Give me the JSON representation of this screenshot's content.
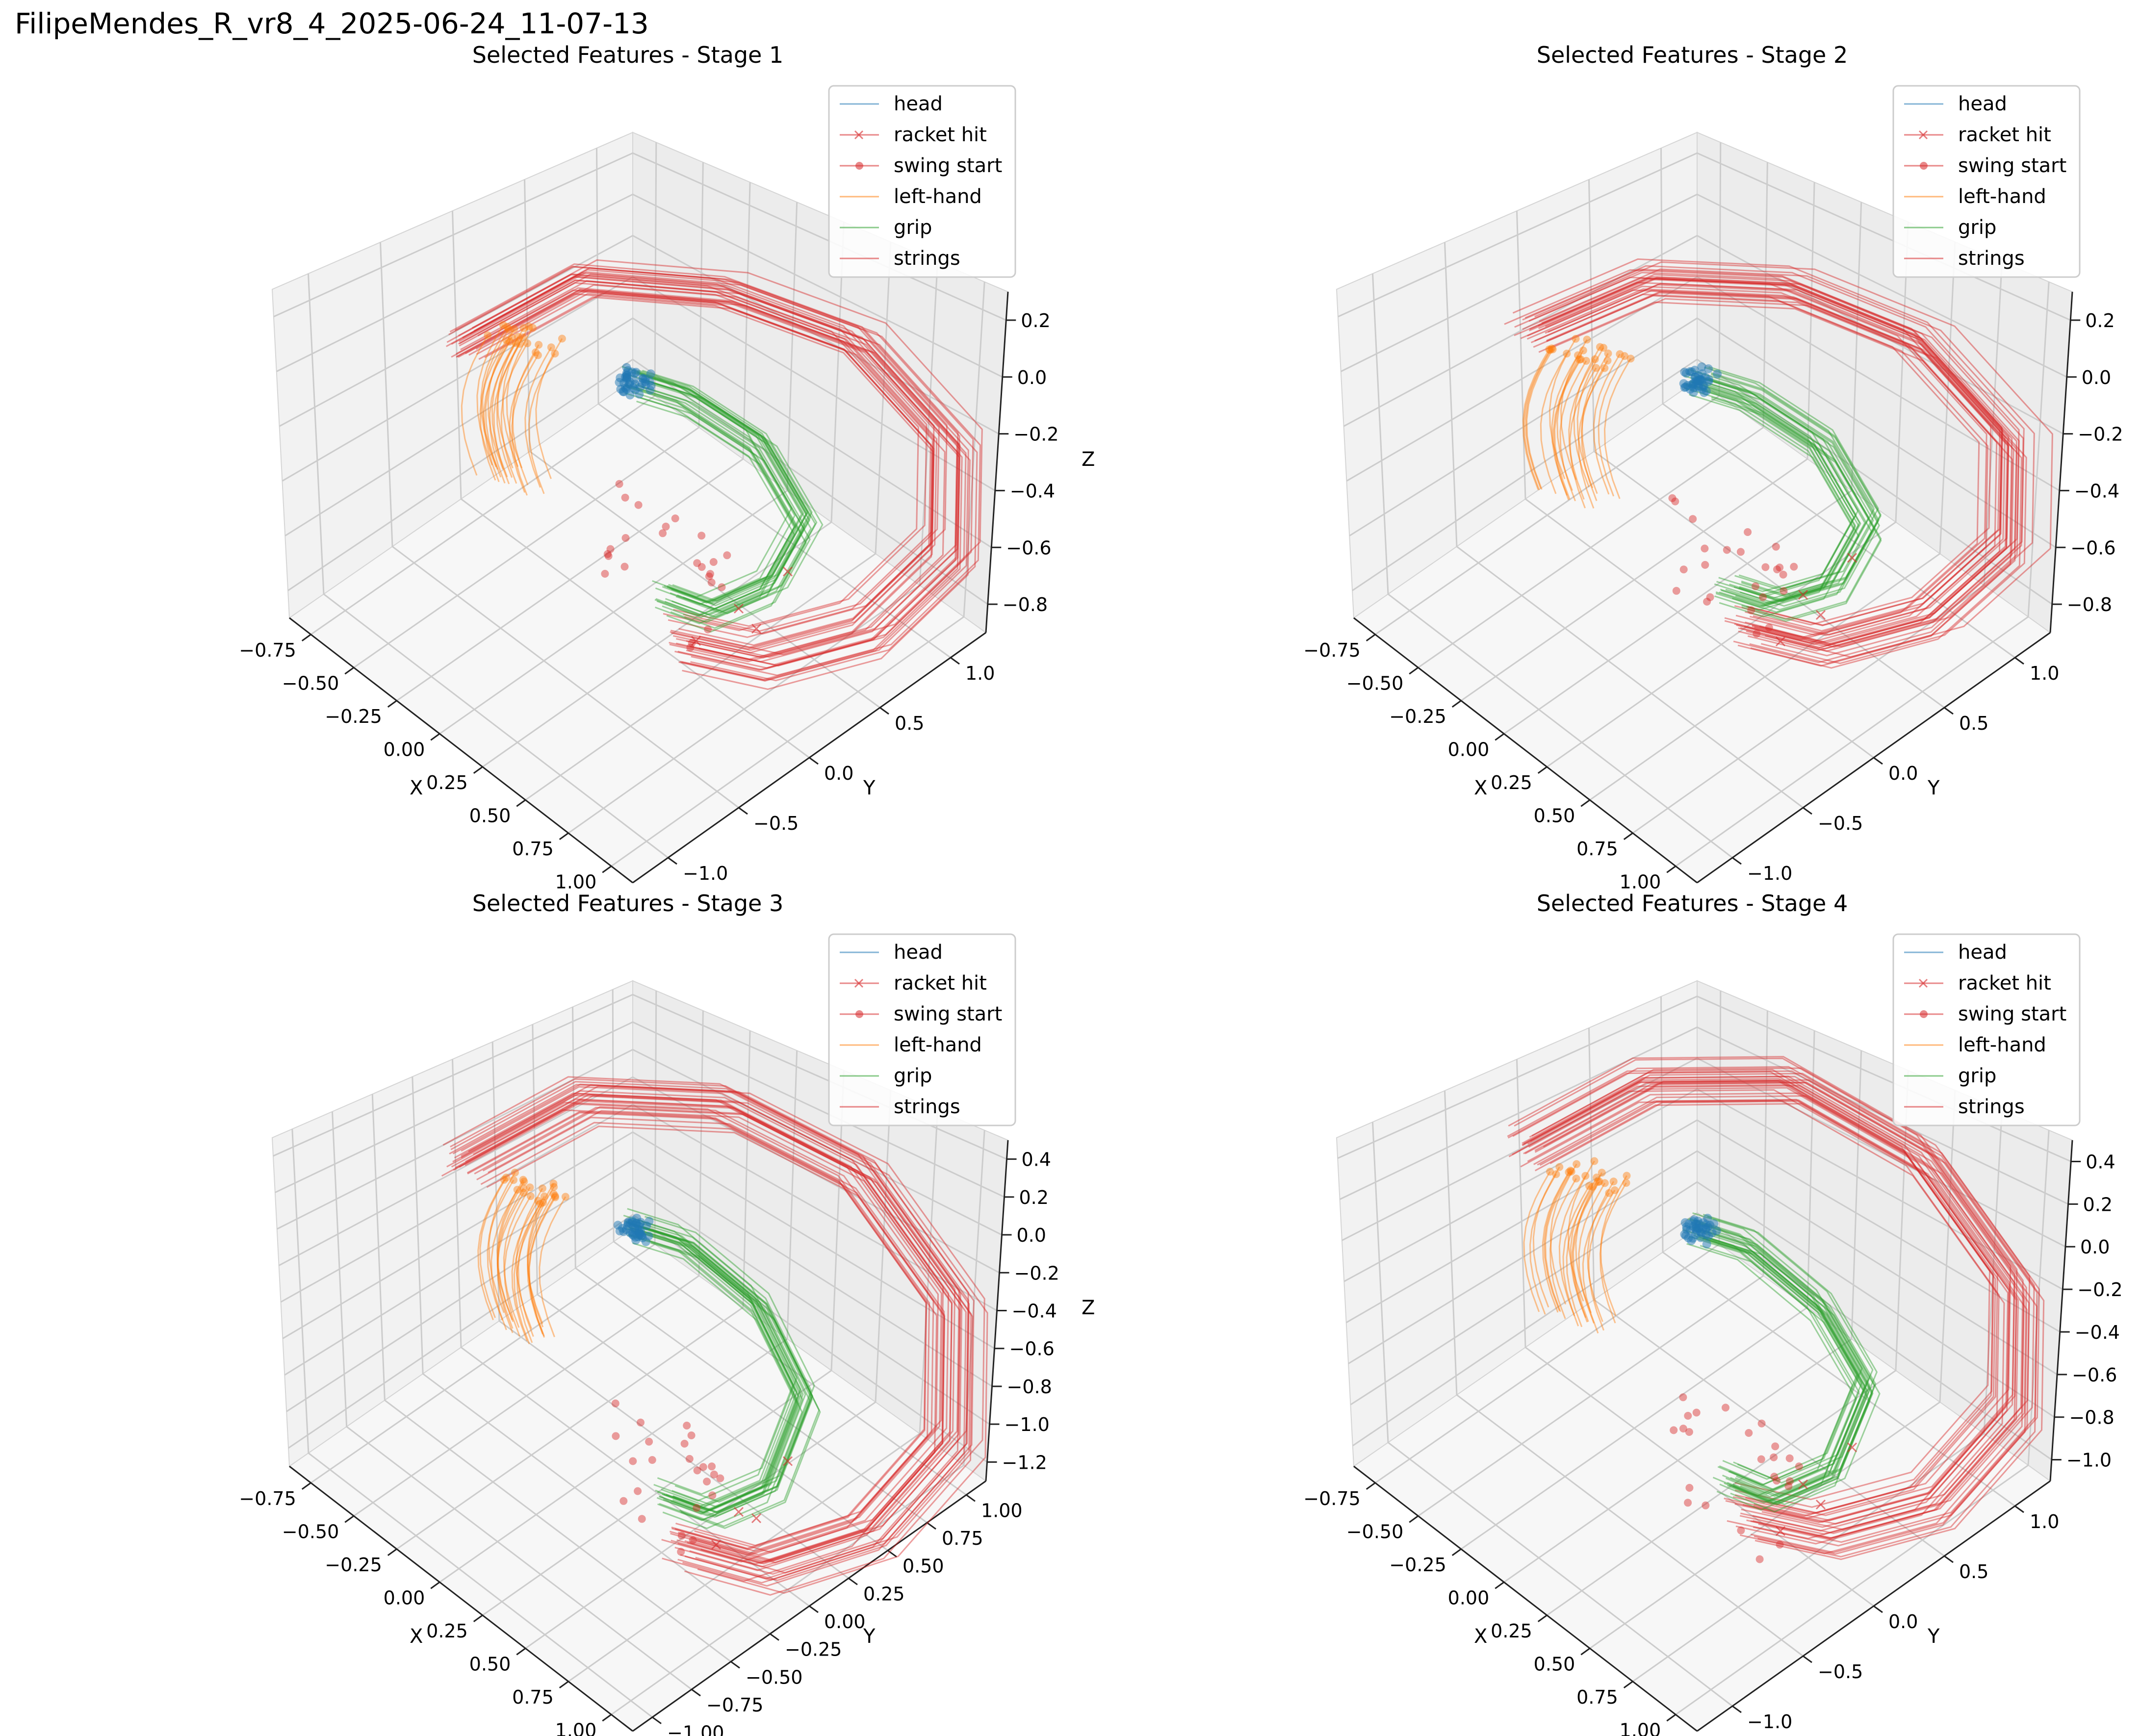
{
  "figure_title": "FilipeMendes_R_vr8_4_2025-06-24_11-07-13",
  "colors": {
    "head": "#1f77b4",
    "racket_hit": "#d62728",
    "swing_start": "#d62728",
    "left_hand": "#ff7f0e",
    "grip": "#2ca02c",
    "strings": "#d62728",
    "pane_left": "#f2f2f2",
    "pane_right": "#ececec",
    "pane_floor": "#f7f7f7",
    "grid": "#cccccc"
  },
  "chart_data": [
    {
      "type": "line",
      "projection": "3d",
      "title": "Selected Features - Stage 1",
      "xlabel": "X",
      "ylabel": "Y",
      "zlabel": "Z",
      "xlim": [
        -0.9,
        1.1
      ],
      "ylim": [
        -1.2,
        1.2
      ],
      "zlim": [
        -0.95,
        0.35
      ],
      "xticks": [
        "−0.75",
        "−0.50",
        "−0.25",
        "0.00",
        "0.25",
        "0.50",
        "0.75",
        "1.00"
      ],
      "yticks": [
        "−1.0",
        "−0.5",
        "0.0",
        "0.5",
        "1.0"
      ],
      "zticks": [
        "−0.8",
        "−0.6",
        "−0.4",
        "−0.2",
        "0.0",
        "0.2"
      ],
      "grid": true,
      "legend": {
        "position": "top-right",
        "entries": [
          "head",
          "racket hit",
          "swing start",
          "left-hand",
          "grip",
          "strings"
        ]
      },
      "series": [
        {
          "name": "head",
          "style": "line",
          "cluster_center": [
            0.02,
            -0.02,
            0.0
          ],
          "spread": 0.05
        },
        {
          "name": "racket hit",
          "style": "x-markers",
          "x": [
            0.45,
            0.6,
            0.55,
            0.3
          ],
          "y": [
            -0.35,
            -0.2,
            0.1,
            0.2
          ],
          "z": [
            -0.7,
            -0.65,
            -0.55,
            -0.8
          ]
        },
        {
          "name": "swing start",
          "style": "dot-markers",
          "x": [
            0.1,
            0.2,
            0.3,
            0.15,
            0.05,
            0.25,
            0.35,
            0.4
          ],
          "y": [
            -0.2,
            -0.1,
            0.0,
            -0.3,
            -0.15,
            0.05,
            -0.05,
            -0.25
          ],
          "z": [
            -0.5,
            -0.45,
            -0.6,
            -0.55,
            -0.4,
            -0.65,
            -0.5,
            -0.7
          ]
        },
        {
          "name": "left-hand",
          "style": "line",
          "center": [
            -0.35,
            -0.1,
            -0.2
          ]
        },
        {
          "name": "grip",
          "style": "line",
          "path": {
            "x": [
              0.02,
              0.15,
              0.35,
              0.5,
              0.45,
              0.3,
              0.15
            ],
            "y": [
              -0.02,
              0.1,
              0.25,
              0.3,
              0.15,
              0.0,
              -0.1
            ],
            "z": [
              0.0,
              -0.05,
              -0.2,
              -0.45,
              -0.65,
              -0.75,
              -0.7
            ]
          }
        },
        {
          "name": "strings",
          "style": "line",
          "path": {
            "x": [
              -0.5,
              -0.2,
              0.2,
              0.55,
              0.8,
              0.85,
              0.7,
              0.45,
              0.2
            ],
            "y": [
              -0.3,
              0.0,
              0.3,
              0.6,
              0.8,
              0.7,
              0.4,
              0.1,
              -0.1
            ],
            "z": [
              0.05,
              0.3,
              0.3,
              0.15,
              -0.2,
              -0.55,
              -0.8,
              -0.9,
              -0.85
            ]
          }
        }
      ]
    },
    {
      "type": "line",
      "projection": "3d",
      "title": "Selected Features - Stage 2",
      "xlabel": "X",
      "ylabel": "Y",
      "zlabel": "",
      "xlim": [
        -0.9,
        1.1
      ],
      "ylim": [
        -1.2,
        1.2
      ],
      "zlim": [
        -0.9,
        0.35
      ],
      "xticks": [
        "−0.75",
        "−0.50",
        "−0.25",
        "0.00",
        "0.25",
        "0.50",
        "0.75",
        "1.00"
      ],
      "yticks": [
        "−1.0",
        "−0.5",
        "0.0",
        "0.5",
        "1.0"
      ],
      "zticks": [
        "−0.8",
        "−0.6",
        "−0.4",
        "−0.2",
        "0.0",
        "0.2"
      ],
      "grid": true,
      "legend": {
        "position": "top-right",
        "entries": [
          "head",
          "racket hit",
          "swing start",
          "left-hand",
          "grip",
          "strings"
        ]
      },
      "series": [
        {
          "name": "head",
          "style": "line",
          "cluster_center": [
            0.02,
            -0.02,
            0.0
          ],
          "spread": 0.05
        },
        {
          "name": "racket hit",
          "style": "x-markers",
          "x": [
            0.5,
            0.6,
            0.55,
            0.3
          ],
          "y": [
            -0.3,
            -0.2,
            0.1,
            0.2
          ],
          "z": [
            -0.7,
            -0.6,
            -0.5,
            -0.75
          ]
        },
        {
          "name": "swing start",
          "style": "dot-markers",
          "x": [
            0.1,
            0.2,
            0.3,
            0.15,
            0.05,
            0.25,
            0.35,
            0.4
          ],
          "y": [
            -0.2,
            -0.1,
            0.0,
            -0.3,
            -0.15,
            0.05,
            -0.05,
            -0.25
          ],
          "z": [
            -0.55,
            -0.5,
            -0.6,
            -0.6,
            -0.45,
            -0.65,
            -0.55,
            -0.7
          ]
        },
        {
          "name": "left-hand",
          "style": "line",
          "center": [
            -0.35,
            -0.1,
            -0.25
          ]
        },
        {
          "name": "grip",
          "style": "line",
          "path": {
            "x": [
              0.02,
              0.15,
              0.35,
              0.5,
              0.45,
              0.3,
              0.15
            ],
            "y": [
              -0.02,
              0.1,
              0.25,
              0.3,
              0.15,
              0.0,
              -0.1
            ],
            "z": [
              0.0,
              -0.05,
              -0.2,
              -0.45,
              -0.65,
              -0.72,
              -0.68
            ]
          }
        },
        {
          "name": "strings",
          "style": "line",
          "path": {
            "x": [
              -0.5,
              -0.2,
              0.2,
              0.55,
              0.8,
              0.85,
              0.7,
              0.45,
              0.2
            ],
            "y": [
              -0.3,
              0.0,
              0.3,
              0.6,
              0.8,
              0.7,
              0.4,
              0.1,
              -0.1
            ],
            "z": [
              0.1,
              0.3,
              0.32,
              0.15,
              -0.2,
              -0.55,
              -0.78,
              -0.88,
              -0.82
            ]
          }
        }
      ]
    },
    {
      "type": "line",
      "projection": "3d",
      "title": "Selected Features - Stage 3",
      "xlabel": "X",
      "ylabel": "Y",
      "zlabel": "Z",
      "xlim": [
        -0.9,
        1.1
      ],
      "ylim": [
        -1.1,
        1.1
      ],
      "zlim": [
        -1.25,
        0.45
      ],
      "xticks": [
        "−0.75",
        "−0.50",
        "−0.25",
        "0.00",
        "0.25",
        "0.50",
        "0.75",
        "1.00"
      ],
      "yticks": [
        "−1.00",
        "−0.75",
        "−0.50",
        "−0.25",
        "0.00",
        "0.25",
        "0.50",
        "0.75",
        "1.00"
      ],
      "zticks": [
        "−1.2",
        "−1.0",
        "−0.8",
        "−0.6",
        "−0.4",
        "−0.2",
        "0.0",
        "0.2",
        "0.4"
      ],
      "grid": true,
      "legend": {
        "position": "top-right",
        "entries": [
          "head",
          "racket hit",
          "swing start",
          "left-hand",
          "grip",
          "strings"
        ]
      },
      "series": [
        {
          "name": "head",
          "style": "line",
          "cluster_center": [
            0.02,
            -0.02,
            0.0
          ],
          "spread": 0.05
        },
        {
          "name": "racket hit",
          "style": "x-markers",
          "x": [
            0.5,
            0.6,
            0.55,
            0.3
          ],
          "y": [
            -0.3,
            -0.2,
            0.1,
            0.2
          ],
          "z": [
            -0.9,
            -0.8,
            -0.7,
            -1.0
          ]
        },
        {
          "name": "swing start",
          "style": "dot-markers",
          "x": [
            0.1,
            0.2,
            0.3,
            0.15,
            0.05,
            0.25,
            0.35,
            0.4
          ],
          "y": [
            -0.2,
            -0.1,
            0.0,
            -0.3,
            -0.15,
            0.05,
            -0.05,
            -0.25
          ],
          "z": [
            -0.75,
            -0.7,
            -0.8,
            -0.85,
            -0.65,
            -0.9,
            -0.75,
            -0.95
          ]
        },
        {
          "name": "left-hand",
          "style": "line",
          "center": [
            -0.35,
            -0.1,
            -0.2
          ]
        },
        {
          "name": "grip",
          "style": "line",
          "path": {
            "x": [
              0.02,
              0.15,
              0.35,
              0.5,
              0.45,
              0.3,
              0.15
            ],
            "y": [
              -0.02,
              0.1,
              0.25,
              0.3,
              0.15,
              0.0,
              -0.1
            ],
            "z": [
              0.0,
              -0.05,
              -0.25,
              -0.55,
              -0.85,
              -0.95,
              -0.9
            ]
          }
        },
        {
          "name": "strings",
          "style": "line",
          "path": {
            "x": [
              -0.5,
              -0.2,
              0.2,
              0.55,
              0.8,
              0.85,
              0.7,
              0.45,
              0.2
            ],
            "y": [
              -0.3,
              0.0,
              0.3,
              0.6,
              0.8,
              0.7,
              0.4,
              0.1,
              -0.1
            ],
            "z": [
              0.15,
              0.4,
              0.42,
              0.2,
              -0.25,
              -0.7,
              -1.0,
              -1.12,
              -1.05
            ]
          }
        }
      ]
    },
    {
      "type": "line",
      "projection": "3d",
      "title": "Selected Features - Stage 4",
      "xlabel": "X",
      "ylabel": "Y",
      "zlabel": "",
      "xlim": [
        -0.9,
        1.1
      ],
      "ylim": [
        -1.2,
        1.2
      ],
      "zlim": [
        -1.05,
        0.55
      ],
      "xticks": [
        "−0.75",
        "−0.50",
        "−0.25",
        "0.00",
        "0.25",
        "0.50",
        "0.75",
        "1.00"
      ],
      "yticks": [
        "−1.0",
        "−0.5",
        "0.0",
        "0.5",
        "1.0"
      ],
      "zticks": [
        "−1.0",
        "−0.8",
        "−0.6",
        "−0.4",
        "−0.2",
        "0.0",
        "0.2",
        "0.4"
      ],
      "grid": true,
      "legend": {
        "position": "top-right",
        "entries": [
          "head",
          "racket hit",
          "swing start",
          "left-hand",
          "grip",
          "strings"
        ]
      },
      "series": [
        {
          "name": "head",
          "style": "line",
          "cluster_center": [
            0.02,
            -0.02,
            0.0
          ],
          "spread": 0.05
        },
        {
          "name": "racket hit",
          "style": "x-markers",
          "x": [
            0.5,
            0.6,
            0.55,
            0.3
          ],
          "y": [
            -0.3,
            -0.2,
            0.1,
            0.2
          ],
          "z": [
            -0.85,
            -0.75,
            -0.65,
            -0.9
          ]
        },
        {
          "name": "swing start",
          "style": "dot-markers",
          "x": [
            0.1,
            0.2,
            0.3,
            0.15,
            0.05,
            0.25,
            0.35,
            0.4
          ],
          "y": [
            -0.2,
            -0.1,
            0.0,
            -0.3,
            -0.15,
            0.05,
            -0.05,
            -0.25
          ],
          "z": [
            -0.7,
            -0.65,
            -0.75,
            -0.8,
            -0.6,
            -0.85,
            -0.7,
            -0.9
          ]
        },
        {
          "name": "left-hand",
          "style": "line",
          "center": [
            -0.35,
            -0.1,
            -0.15
          ]
        },
        {
          "name": "grip",
          "style": "line",
          "path": {
            "x": [
              0.02,
              0.15,
              0.35,
              0.5,
              0.45,
              0.3,
              0.15
            ],
            "y": [
              -0.02,
              0.1,
              0.25,
              0.3,
              0.15,
              0.0,
              -0.1
            ],
            "z": [
              0.0,
              -0.05,
              -0.25,
              -0.5,
              -0.78,
              -0.88,
              -0.82
            ]
          }
        },
        {
          "name": "strings",
          "style": "line",
          "path": {
            "x": [
              -0.5,
              -0.2,
              0.2,
              0.55,
              0.8,
              0.85,
              0.7,
              0.45,
              0.2
            ],
            "y": [
              -0.3,
              0.0,
              0.3,
              0.6,
              0.8,
              0.7,
              0.4,
              0.1,
              -0.1
            ],
            "z": [
              0.2,
              0.45,
              0.5,
              0.25,
              -0.2,
              -0.6,
              -0.9,
              -1.0,
              -0.95
            ]
          }
        }
      ]
    }
  ]
}
